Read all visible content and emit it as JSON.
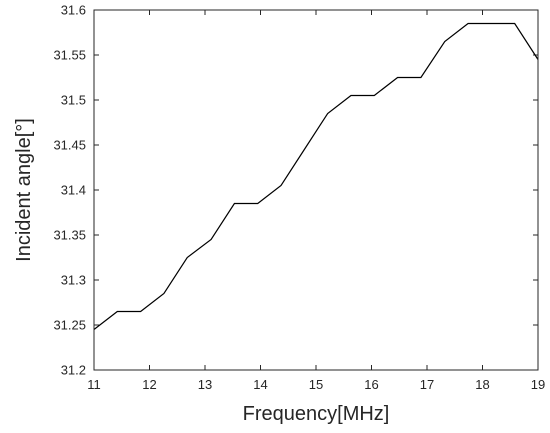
{
  "chart_data": {
    "type": "line",
    "title": "",
    "xlabel": "Frequency[MHz]",
    "ylabel": "Incident angle[°]",
    "xlim": [
      11,
      19
    ],
    "ylim": [
      31.2,
      31.6
    ],
    "xticks": [
      11,
      12,
      13,
      14,
      15,
      16,
      17,
      18,
      19
    ],
    "yticks": [
      31.2,
      31.25,
      31.3,
      31.35,
      31.4,
      31.45,
      31.5,
      31.55,
      31.6
    ],
    "xtick_labels": [
      "11",
      "12",
      "13",
      "14",
      "15",
      "16",
      "17",
      "18",
      "19"
    ],
    "ytick_labels": [
      "31.2",
      "31.25",
      "31.3",
      "31.35",
      "31.4",
      "31.45",
      "31.5",
      "31.55",
      "31.6"
    ],
    "grid": false,
    "line_color": "#000000",
    "series": [
      {
        "x": [
          11.0,
          11.42,
          11.84,
          12.26,
          12.68,
          13.11,
          13.53,
          13.95,
          14.37,
          14.79,
          15.21,
          15.63,
          16.05,
          16.47,
          16.89,
          17.32,
          17.74,
          18.16,
          18.58,
          19.0
        ],
        "y": [
          31.245,
          31.265,
          31.265,
          31.285,
          31.325,
          31.345,
          31.385,
          31.385,
          31.405,
          31.445,
          31.485,
          31.505,
          31.505,
          31.525,
          31.525,
          31.565,
          31.585,
          31.585,
          31.585,
          31.545
        ]
      }
    ]
  }
}
